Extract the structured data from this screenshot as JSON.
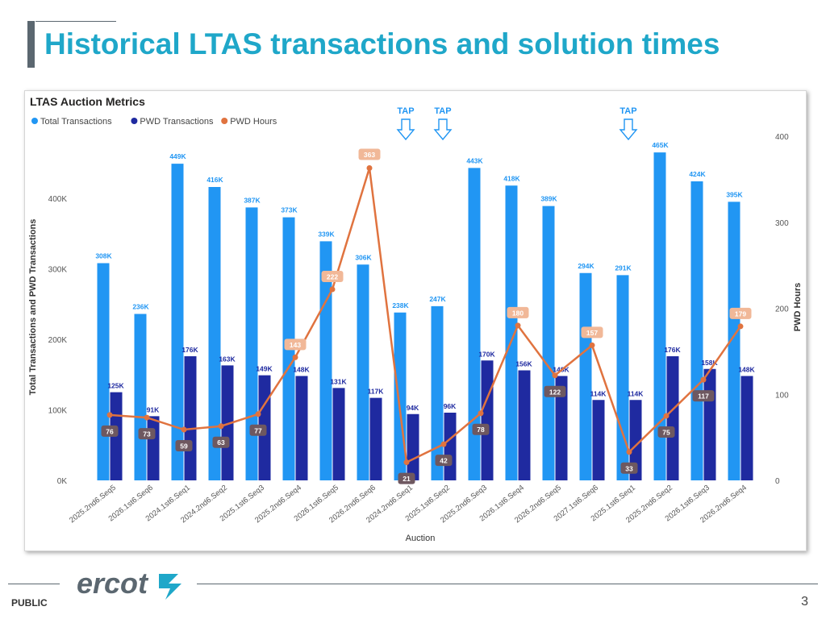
{
  "slide": {
    "title": "Historical LTAS transactions and solution times",
    "footer_label": "PUBLIC",
    "page_number": "3",
    "logo_text": "ercot"
  },
  "colors": {
    "total": "#2196f3",
    "pwd": "#1f2aa0",
    "hours": "#e0733f",
    "tap": "#2196f3",
    "title": "#1fa7c9"
  },
  "chart_data": {
    "type": "bar",
    "title": "LTAS Auction Metrics",
    "xlabel": "Auction",
    "ylabel": "Total Transactions and PWD Transactions",
    "y2label": "PWD Hours",
    "ylim": [
      0,
      450000
    ],
    "y2lim": [
      0,
      400
    ],
    "yticks": [
      "0K",
      "100K",
      "200K",
      "300K",
      "400K"
    ],
    "y2ticks": [
      "0",
      "100",
      "200",
      "300",
      "400"
    ],
    "legend_position": "top-left",
    "grid": false,
    "categories": [
      "2025.2nd6.Seq5",
      "2026.1st6.Seq6",
      "2024.1st6.Seq1",
      "2024.2nd6.Seq2",
      "2025.1st6.Seq3",
      "2025.2nd6.Seq4",
      "2026.1st6.Seq5",
      "2026.2nd6.Seq6",
      "2024.2nd6.Seq1",
      "2025.1st6.Seq2",
      "2025.2nd6.Seq3",
      "2026.1st6.Seq4",
      "2026.2nd6.Seq5",
      "2027.1st6.Seq6",
      "2025.1st6.Seq1",
      "2025.2nd6.Seq2",
      "2026.1st6.Seq3",
      "2026.2nd6.Seq4"
    ],
    "series": [
      {
        "name": "Total Transactions",
        "values": [
          308000,
          236000,
          449000,
          416000,
          387000,
          373000,
          339000,
          306000,
          238000,
          247000,
          443000,
          418000,
          389000,
          294000,
          291000,
          465000,
          424000,
          395000
        ],
        "labels": [
          "308K",
          "236K",
          "449K",
          "416K",
          "387K",
          "373K",
          "339K",
          "306K",
          "238K",
          "247K",
          "443K",
          "418K",
          "389K",
          "294K",
          "291K",
          "465K",
          "424K",
          "395K"
        ]
      },
      {
        "name": "PWD Transactions",
        "values": [
          125000,
          91000,
          176000,
          163000,
          149000,
          148000,
          131000,
          117000,
          94000,
          96000,
          170000,
          156000,
          148000,
          114000,
          114000,
          176000,
          158000,
          148000
        ],
        "labels": [
          "125K",
          "91K",
          "176K",
          "163K",
          "149K",
          "148K",
          "131K",
          "117K",
          "94K",
          "96K",
          "170K",
          "156K",
          "148K",
          "114K",
          "114K",
          "176K",
          "158K",
          "148K"
        ]
      },
      {
        "name": "PWD Hours",
        "values": [
          76,
          73,
          59,
          63,
          77,
          143,
          222,
          363,
          21,
          42,
          78,
          180,
          122,
          157,
          33,
          75,
          117,
          179
        ],
        "labels": [
          "76",
          "73",
          "59",
          "63",
          "77",
          "143",
          "222",
          "363",
          "21",
          "42",
          "78",
          "180",
          "122",
          "157",
          "33",
          "75",
          "117",
          "179"
        ]
      }
    ],
    "annotations": [
      {
        "text": "TAP",
        "category_index": 8
      },
      {
        "text": "TAP",
        "category_index": 9
      },
      {
        "text": "TAP",
        "category_index": 14
      }
    ]
  }
}
